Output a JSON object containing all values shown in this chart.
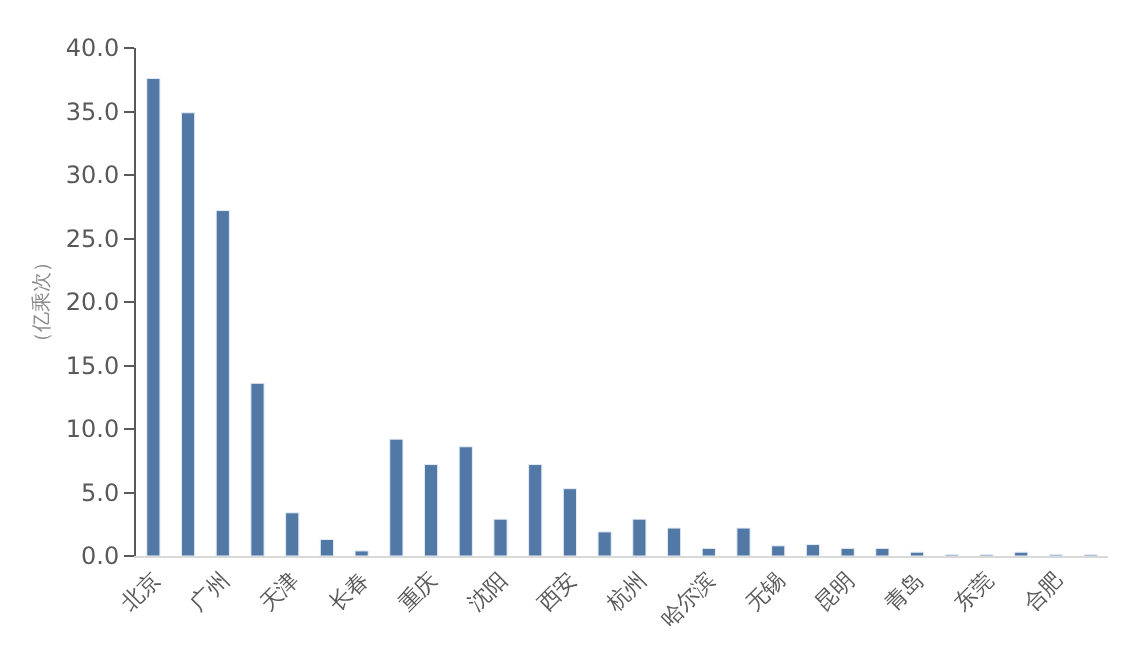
{
  "chart_data": {
    "type": "bar",
    "ylabel": "（亿乘次）",
    "categories": [
      "北京",
      null,
      "广州",
      null,
      "天津",
      null,
      "长春",
      null,
      "重庆",
      null,
      "沈阳",
      null,
      "西安",
      null,
      "杭州",
      null,
      "哈尔滨",
      null,
      "无锡",
      null,
      "昆明",
      null,
      "青岛",
      null,
      "东莞",
      null,
      "合肥",
      null
    ],
    "values": [
      37.6,
      34.9,
      27.2,
      13.6,
      3.4,
      1.3,
      0.4,
      9.2,
      7.2,
      8.6,
      2.9,
      7.2,
      5.3,
      1.9,
      2.9,
      2.2,
      0.6,
      2.2,
      0.8,
      0.9,
      0.6,
      0.6,
      0.3,
      0.1,
      0.1,
      0.3,
      0.1,
      0.1
    ],
    "color": "#5279a6",
    "ylim": [
      0,
      40
    ],
    "yticks": [
      {
        "value": 0,
        "label": "0.0"
      },
      {
        "value": 5,
        "label": "5.0"
      },
      {
        "value": 10,
        "label": "10.0"
      },
      {
        "value": 15,
        "label": "15.0"
      },
      {
        "value": 20,
        "label": "20.0"
      },
      {
        "value": 25,
        "label": "25.0"
      },
      {
        "value": 30,
        "label": "30.0"
      },
      {
        "value": 35,
        "label": "35.0"
      },
      {
        "value": 40,
        "label": "40.0"
      }
    ],
    "grid": false
  }
}
